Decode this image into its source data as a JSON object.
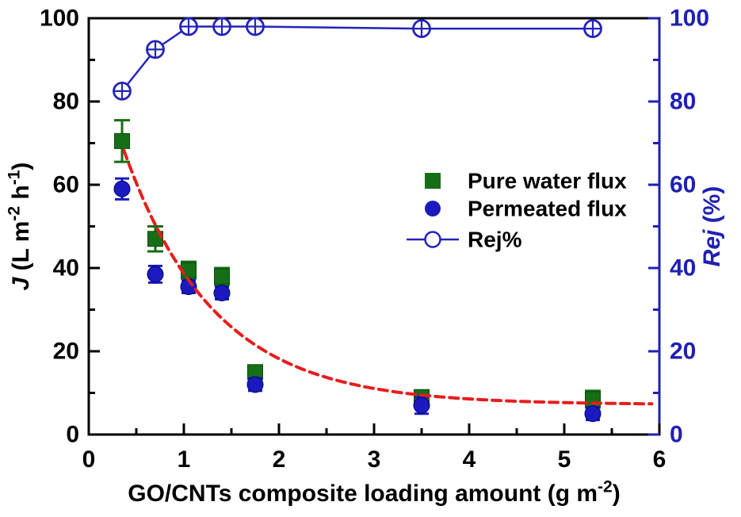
{
  "chart_data": {
    "type": "scatter",
    "x_values": [
      0.35,
      0.7,
      1.05,
      1.4,
      1.75,
      3.5,
      5.3
    ],
    "series": [
      {
        "name": "Pure water flux",
        "axis": "left",
        "marker": "square",
        "color": "#166e16",
        "edge_color": "#0a4d0a",
        "values": [
          70.5,
          47,
          39.5,
          38,
          15,
          9,
          8.5
        ],
        "errors": [
          5,
          3,
          2,
          2,
          1.5,
          1.5,
          2
        ],
        "line": false
      },
      {
        "name": "Permeated flux",
        "axis": "left",
        "marker": "circle",
        "color": "#1a1abe",
        "edge_color": "#00007a",
        "values": [
          59,
          38.5,
          35.5,
          34,
          12,
          7,
          5
        ],
        "errors": [
          2.5,
          2,
          1.5,
          1.5,
          1.5,
          2,
          1.5
        ],
        "line": false
      },
      {
        "name": "Rej%",
        "axis": "right",
        "marker": "open-circle-cross",
        "color": "#2323bb",
        "edge_color": "#2323bb",
        "values": [
          82.5,
          92.5,
          98,
          98,
          98,
          97.5,
          97.5
        ],
        "errors": [
          1.5,
          1.5,
          1,
          1,
          1,
          1,
          1
        ],
        "line": true
      }
    ],
    "trend": {
      "name": "exponential decay fit",
      "color": "#e81c1c",
      "style": "dashed",
      "fit_a": 90,
      "fit_b": 1.05,
      "fit_c": 7.2,
      "x_start": 0.37,
      "x_end": 5.95
    },
    "x_axis": {
      "label": "GO/CNTs composite loading amount (g m⁻²)",
      "label_parts": [
        {
          "t": "GO/CNTs composite loading amount (g m"
        },
        {
          "t": "-2",
          "sup": true
        },
        {
          "t": ")"
        }
      ],
      "min": 0,
      "max": 6,
      "major_step": 1,
      "minor_step": 0.5,
      "tick_labels": [
        "0",
        "1",
        "2",
        "3",
        "4",
        "5",
        "6"
      ],
      "color": "#000000"
    },
    "y_left": {
      "label": "J (L m⁻² h⁻¹)",
      "label_parts": [
        {
          "t": "J",
          "italic": true
        },
        {
          "t": " (L m"
        },
        {
          "t": "-2",
          "sup": true
        },
        {
          "t": " h"
        },
        {
          "t": "-1",
          "sup": true
        },
        {
          "t": ")"
        }
      ],
      "min": 0,
      "max": 100,
      "major_step": 20,
      "minor_step": 10,
      "tick_labels": [
        "0",
        "20",
        "40",
        "60",
        "80",
        "100"
      ],
      "color": "#000000"
    },
    "y_right": {
      "label": "Rej (%)",
      "label_parts": [
        {
          "t": "Rej",
          "italic": true
        },
        {
          "t": " (%)"
        }
      ],
      "min": 0,
      "max": 100,
      "major_step": 20,
      "minor_step": 10,
      "tick_labels": [
        "0",
        "20",
        "40",
        "60",
        "80",
        "100"
      ],
      "color": "#2020b4"
    },
    "legend": {
      "position": "center-right",
      "items": [
        {
          "label": "Pure water flux",
          "marker": "square",
          "color": "#166e16"
        },
        {
          "label": "Permeated flux",
          "marker": "circle",
          "color": "#1a1abe"
        },
        {
          "label": "Rej%",
          "marker": "line-open-circle",
          "color": "#2323bb"
        }
      ]
    },
    "grid": false,
    "background": "#ffffff"
  }
}
